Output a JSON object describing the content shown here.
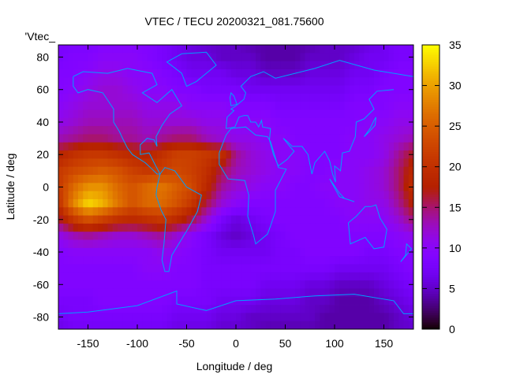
{
  "chart_data": {
    "type": "heatmap",
    "title": "VTEC / TECU 20200321_081.75600",
    "xlabel": "Longitude / deg",
    "ylabel": "Latitude / deg",
    "legend_entry": "'Vtec_",
    "legend_placement": "top-left",
    "xlim": [
      -180,
      180
    ],
    "ylim": [
      -87.5,
      87.5
    ],
    "zlim": [
      0,
      35
    ],
    "xticks": [
      -150,
      -100,
      -50,
      0,
      50,
      100,
      150
    ],
    "yticks": [
      -80,
      -60,
      -40,
      -20,
      0,
      20,
      40,
      60,
      80
    ],
    "cbticks": [
      0,
      5,
      10,
      15,
      20,
      25,
      30,
      35
    ],
    "colormap": "black-purple-red-yellow",
    "coastline_color": "#00a0ff",
    "grid_lons": [
      -180,
      -165,
      -150,
      -135,
      -120,
      -105,
      -90,
      -75,
      -60,
      -45,
      -30,
      -15,
      0,
      15,
      30,
      45,
      60,
      75,
      90,
      105,
      120,
      135,
      150,
      165,
      180
    ],
    "grid_lats": [
      90,
      80,
      70,
      60,
      50,
      40,
      30,
      20,
      10,
      0,
      -10,
      -20,
      -30,
      -40,
      -50,
      -60,
      -70,
      -80,
      -90
    ],
    "values": [
      [
        8,
        8,
        8,
        9,
        9,
        9,
        9,
        8,
        7,
        6,
        5,
        5,
        5,
        4,
        4,
        4,
        4,
        4,
        5,
        5,
        5,
        6,
        7,
        8,
        8
      ],
      [
        8,
        9,
        9,
        10,
        10,
        10,
        9,
        8,
        7,
        6,
        6,
        5,
        5,
        5,
        4,
        4,
        4,
        5,
        5,
        5,
        6,
        7,
        7,
        8,
        8
      ],
      [
        9,
        9,
        10,
        11,
        11,
        10,
        10,
        9,
        8,
        7,
        7,
        7,
        6,
        6,
        5,
        5,
        5,
        6,
        6,
        6,
        7,
        7,
        8,
        9,
        9
      ],
      [
        9,
        10,
        11,
        12,
        12,
        11,
        10,
        10,
        9,
        9,
        8,
        8,
        8,
        7,
        7,
        7,
        7,
        7,
        7,
        7,
        8,
        8,
        9,
        9,
        9
      ],
      [
        10,
        11,
        12,
        12,
        12,
        12,
        11,
        11,
        11,
        10,
        10,
        10,
        9,
        9,
        9,
        8,
        8,
        8,
        8,
        8,
        9,
        9,
        9,
        10,
        10
      ],
      [
        11,
        12,
        13,
        13,
        13,
        13,
        12,
        12,
        12,
        12,
        11,
        11,
        10,
        10,
        10,
        9,
        9,
        9,
        9,
        9,
        9,
        10,
        10,
        11,
        11
      ],
      [
        13,
        14,
        15,
        15,
        14,
        14,
        13,
        14,
        15,
        15,
        13,
        12,
        11,
        11,
        10,
        10,
        9,
        9,
        9,
        9,
        10,
        10,
        11,
        12,
        13
      ],
      [
        18,
        20,
        21,
        21,
        20,
        19,
        18,
        20,
        22,
        22,
        21,
        20,
        14,
        12,
        11,
        10,
        10,
        9,
        9,
        9,
        10,
        10,
        11,
        14,
        17
      ],
      [
        21,
        23,
        24,
        25,
        24,
        22,
        21,
        22,
        23,
        22,
        20,
        16,
        13,
        12,
        11,
        10,
        10,
        9,
        9,
        10,
        10,
        11,
        12,
        15,
        19
      ],
      [
        21,
        26,
        29,
        29,
        26,
        24,
        26,
        27,
        25,
        23,
        19,
        14,
        12,
        11,
        10,
        10,
        9,
        9,
        10,
        10,
        10,
        11,
        12,
        15,
        20
      ],
      [
        20,
        28,
        33,
        31,
        27,
        24,
        26,
        26,
        24,
        21,
        16,
        12,
        10,
        9,
        9,
        9,
        9,
        9,
        9,
        10,
        10,
        11,
        11,
        14,
        18
      ],
      [
        16,
        21,
        24,
        22,
        20,
        19,
        20,
        21,
        19,
        16,
        12,
        8,
        6,
        7,
        8,
        9,
        9,
        9,
        9,
        9,
        10,
        10,
        10,
        12,
        15
      ],
      [
        11,
        13,
        14,
        13,
        12,
        12,
        13,
        14,
        12,
        10,
        8,
        6,
        5,
        6,
        7,
        8,
        9,
        9,
        9,
        9,
        9,
        9,
        9,
        10,
        11
      ],
      [
        9,
        10,
        10,
        10,
        10,
        10,
        10,
        11,
        10,
        9,
        8,
        7,
        7,
        7,
        7,
        8,
        8,
        9,
        9,
        9,
        9,
        8,
        8,
        9,
        9
      ],
      [
        9,
        9,
        9,
        9,
        9,
        9,
        10,
        10,
        9,
        9,
        8,
        8,
        8,
        8,
        8,
        8,
        8,
        8,
        8,
        7,
        7,
        7,
        7,
        8,
        9
      ],
      [
        9,
        9,
        9,
        9,
        9,
        9,
        9,
        9,
        9,
        9,
        8,
        8,
        8,
        8,
        7,
        7,
        7,
        6,
        6,
        5,
        5,
        5,
        6,
        7,
        8
      ],
      [
        8,
        8,
        8,
        9,
        9,
        9,
        9,
        9,
        8,
        8,
        8,
        7,
        7,
        7,
        6,
        6,
        6,
        5,
        5,
        4,
        4,
        4,
        5,
        6,
        7
      ],
      [
        7,
        8,
        8,
        8,
        8,
        8,
        8,
        8,
        7,
        7,
        7,
        6,
        6,
        5,
        5,
        5,
        5,
        5,
        4,
        4,
        4,
        4,
        4,
        5,
        6
      ],
      [
        6,
        7,
        7,
        7,
        7,
        7,
        7,
        7,
        6,
        6,
        6,
        5,
        5,
        5,
        4,
        4,
        4,
        4,
        4,
        4,
        4,
        4,
        4,
        5,
        5
      ]
    ]
  }
}
